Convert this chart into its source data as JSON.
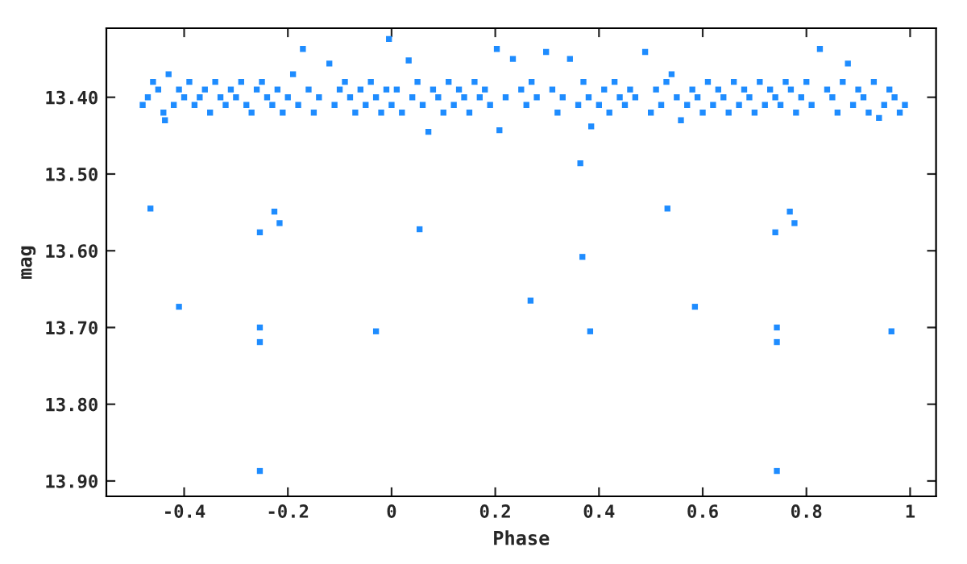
{
  "chart_data": {
    "type": "scatter",
    "xlabel": "Phase",
    "ylabel": "mag",
    "marker": "square",
    "grid": false,
    "xlim": [
      -0.55,
      1.05
    ],
    "xticks": [
      -0.4,
      -0.2,
      0,
      0.2,
      0.4,
      0.6,
      0.8,
      1
    ],
    "ylim": [
      13.92,
      13.31
    ],
    "yticks": [
      {
        "value": 13.4,
        "label": "13.40"
      },
      {
        "value": 13.5,
        "label": "13.50"
      },
      {
        "value": 13.6,
        "label": "13.60"
      },
      {
        "value": 13.7,
        "label": "13.70"
      },
      {
        "value": 13.8,
        "label": "13.80"
      },
      {
        "value": 13.9,
        "label": "13.90"
      }
    ],
    "series": [
      {
        "color": "#1e8cff",
        "x": [
          -0.48,
          -0.47,
          -0.46,
          -0.45,
          -0.44,
          -0.437,
          -0.43,
          -0.42,
          -0.41,
          -0.4,
          -0.39,
          -0.38,
          -0.37,
          -0.36,
          -0.35,
          -0.34,
          -0.33,
          -0.32,
          -0.31,
          -0.3,
          -0.29,
          -0.28,
          -0.27,
          -0.26,
          -0.25,
          -0.24,
          -0.23,
          -0.22,
          -0.21,
          -0.2,
          -0.19,
          -0.18,
          -0.171,
          -0.16,
          -0.15,
          -0.14,
          -0.12,
          -0.11,
          -0.1,
          -0.09,
          -0.08,
          -0.07,
          -0.06,
          -0.05,
          -0.04,
          -0.03,
          -0.02,
          -0.01,
          -0.005,
          0.0,
          0.01,
          0.02,
          0.033,
          0.04,
          0.05,
          0.06,
          0.071,
          0.08,
          0.09,
          0.1,
          0.11,
          0.12,
          0.13,
          0.14,
          0.15,
          0.16,
          0.17,
          0.18,
          0.19,
          0.203,
          0.208,
          0.22,
          0.234,
          0.25,
          0.26,
          0.27,
          0.28,
          0.298,
          0.31,
          0.32,
          0.33,
          0.344,
          0.36,
          0.37,
          0.38,
          0.385,
          0.4,
          0.41,
          0.42,
          0.43,
          0.44,
          0.45,
          0.46,
          0.47,
          0.489,
          0.5,
          0.51,
          0.52,
          0.53,
          0.54,
          0.55,
          0.558,
          0.57,
          0.58,
          0.59,
          0.6,
          0.61,
          0.62,
          0.63,
          0.64,
          0.65,
          0.66,
          0.67,
          0.68,
          0.69,
          0.7,
          0.71,
          0.72,
          0.73,
          0.74,
          0.75,
          0.76,
          0.77,
          0.78,
          0.79,
          0.8,
          0.81,
          0.826,
          0.84,
          0.85,
          0.86,
          0.87,
          0.88,
          0.89,
          0.9,
          0.91,
          0.92,
          0.93,
          0.94,
          0.95,
          0.96,
          0.97,
          0.98,
          0.99,
          -0.465,
          -0.41,
          -0.254,
          -0.226,
          -0.216,
          -0.254,
          -0.254,
          -0.254,
          -0.03,
          0.054,
          0.268,
          0.364,
          0.368,
          0.383,
          0.532,
          0.585,
          0.74,
          0.768,
          0.777,
          0.743,
          0.743,
          0.743,
          0.964
        ],
        "values": [
          13.41,
          13.4,
          13.38,
          13.39,
          13.42,
          13.43,
          13.37,
          13.41,
          13.39,
          13.4,
          13.38,
          13.41,
          13.4,
          13.39,
          13.42,
          13.38,
          13.4,
          13.41,
          13.39,
          13.4,
          13.38,
          13.41,
          13.42,
          13.39,
          13.38,
          13.4,
          13.41,
          13.39,
          13.42,
          13.4,
          13.37,
          13.41,
          13.337,
          13.39,
          13.42,
          13.4,
          13.356,
          13.41,
          13.39,
          13.38,
          13.4,
          13.42,
          13.39,
          13.41,
          13.38,
          13.4,
          13.42,
          13.39,
          13.324,
          13.41,
          13.39,
          13.42,
          13.352,
          13.4,
          13.38,
          13.41,
          13.445,
          13.39,
          13.4,
          13.42,
          13.38,
          13.41,
          13.39,
          13.4,
          13.42,
          13.38,
          13.4,
          13.39,
          13.41,
          13.337,
          13.443,
          13.4,
          13.35,
          13.39,
          13.41,
          13.38,
          13.4,
          13.341,
          13.39,
          13.42,
          13.4,
          13.35,
          13.41,
          13.38,
          13.4,
          13.438,
          13.41,
          13.39,
          13.42,
          13.38,
          13.4,
          13.41,
          13.39,
          13.4,
          13.341,
          13.42,
          13.39,
          13.41,
          13.38,
          13.37,
          13.4,
          13.43,
          13.41,
          13.39,
          13.4,
          13.42,
          13.38,
          13.41,
          13.39,
          13.4,
          13.42,
          13.38,
          13.41,
          13.39,
          13.4,
          13.42,
          13.38,
          13.41,
          13.39,
          13.4,
          13.41,
          13.38,
          13.39,
          13.42,
          13.4,
          13.38,
          13.41,
          13.337,
          13.39,
          13.4,
          13.42,
          13.38,
          13.356,
          13.41,
          13.39,
          13.4,
          13.42,
          13.38,
          13.427,
          13.41,
          13.39,
          13.4,
          13.42,
          13.41,
          13.545,
          13.673,
          13.576,
          13.549,
          13.564,
          13.7,
          13.719,
          13.887,
          13.705,
          13.572,
          13.665,
          13.486,
          13.608,
          13.705,
          13.545,
          13.673,
          13.576,
          13.549,
          13.564,
          13.7,
          13.719,
          13.887,
          13.705
        ]
      }
    ]
  }
}
